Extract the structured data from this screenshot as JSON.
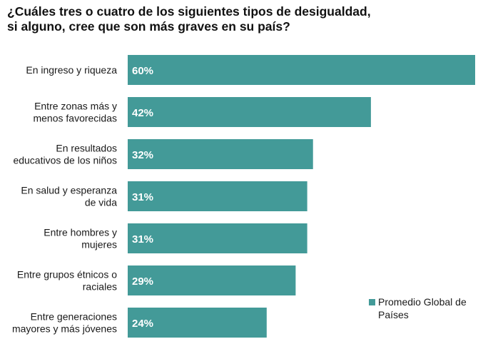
{
  "title_lines": [
    "¿Cuáles tres o cuatro de los siguientes tipos de desigualdad,",
    "si alguno, cree que son más graves en su país?"
  ],
  "legend": {
    "label": "Promedio Global de Países"
  },
  "colors": {
    "bar": "#439a98",
    "text": "#1a1a1a",
    "label_on_bar": "#ffffff"
  },
  "chart_data": {
    "type": "bar",
    "orientation": "horizontal",
    "title": "¿Cuáles tres o cuatro de los siguientes tipos de desigualdad, si alguno, cree que son más graves en su país?",
    "categories": [
      [
        "En ingreso y riqueza"
      ],
      [
        "Entre zonas más y",
        "menos favorecidas"
      ],
      [
        "En resultados",
        "educativos de los niños"
      ],
      [
        "En salud y esperanza",
        "de vida"
      ],
      [
        "Entre hombres y",
        "mujeres"
      ],
      [
        "Entre grupos étnicos o",
        "raciales"
      ],
      [
        "Entre generaciones",
        "mayores y más jóvenes"
      ]
    ],
    "series": [
      {
        "name": "Promedio Global de Países",
        "values": [
          60,
          42,
          32,
          31,
          31,
          29,
          24
        ]
      }
    ],
    "value_labels": [
      "60%",
      "42%",
      "32%",
      "31%",
      "31%",
      "29%",
      "24%"
    ],
    "xlim": [
      0,
      60
    ],
    "grid": false,
    "legend_position": "bottom-right"
  }
}
